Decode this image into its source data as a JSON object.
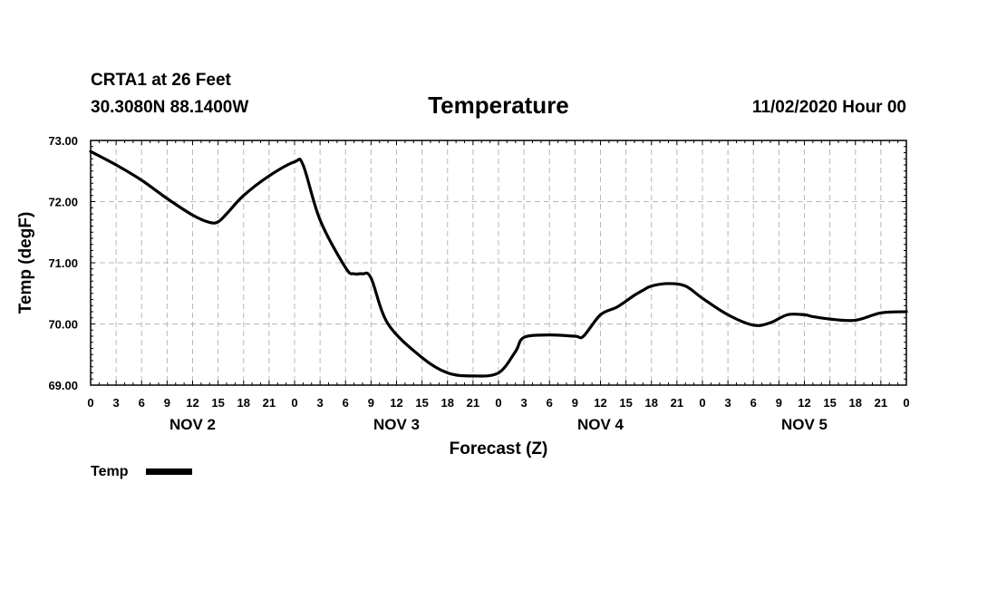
{
  "header": {
    "station": "CRTA1 at 26 Feet",
    "location": "30.3080N 88.1400W",
    "run_time": "11/02/2020 Hour 00"
  },
  "chart_data": {
    "type": "line",
    "title": "Temperature",
    "xlabel": "Forecast (Z)",
    "ylabel": "Temp (degF)",
    "ylim": [
      69.0,
      73.0
    ],
    "xlim_hours": [
      0,
      96
    ],
    "y_ticks": [
      "69.00",
      "70.00",
      "71.00",
      "72.00",
      "73.00"
    ],
    "x_tick_labels": [
      "0",
      "3",
      "6",
      "9",
      "12",
      "15",
      "18",
      "21",
      "0",
      "3",
      "6",
      "9",
      "12",
      "15",
      "18",
      "21",
      "0",
      "3",
      "6",
      "9",
      "12",
      "15",
      "18",
      "21",
      "0",
      "3",
      "6",
      "9",
      "12",
      "15",
      "18",
      "21",
      "0"
    ],
    "day_labels": [
      "NOV 2",
      "NOV 3",
      "NOV 4",
      "NOV 5"
    ],
    "grid": true,
    "legend_position": "bottom-left",
    "series": [
      {
        "name": "Temp",
        "color": "#000000",
        "x_hours": [
          0,
          3,
          6,
          9,
          12,
          14,
          15,
          16,
          18,
          21,
          24,
          25,
          27,
          30,
          31,
          32,
          33,
          35,
          39,
          42,
          45,
          48,
          50,
          51,
          54,
          57,
          58,
          60,
          62,
          64,
          65,
          66,
          68,
          70,
          72,
          75,
          78,
          80,
          82,
          84,
          85,
          87,
          90,
          93,
          96
        ],
        "values": [
          72.82,
          72.6,
          72.35,
          72.05,
          71.78,
          71.66,
          71.67,
          71.8,
          72.1,
          72.42,
          72.65,
          72.6,
          71.7,
          70.92,
          70.82,
          70.82,
          70.75,
          70.0,
          69.45,
          69.2,
          69.15,
          69.2,
          69.55,
          69.78,
          69.82,
          69.8,
          69.8,
          70.15,
          70.28,
          70.47,
          70.55,
          70.62,
          70.66,
          70.62,
          70.42,
          70.15,
          69.98,
          70.02,
          70.15,
          70.15,
          70.12,
          70.08,
          70.06,
          70.18,
          70.2
        ]
      }
    ]
  }
}
